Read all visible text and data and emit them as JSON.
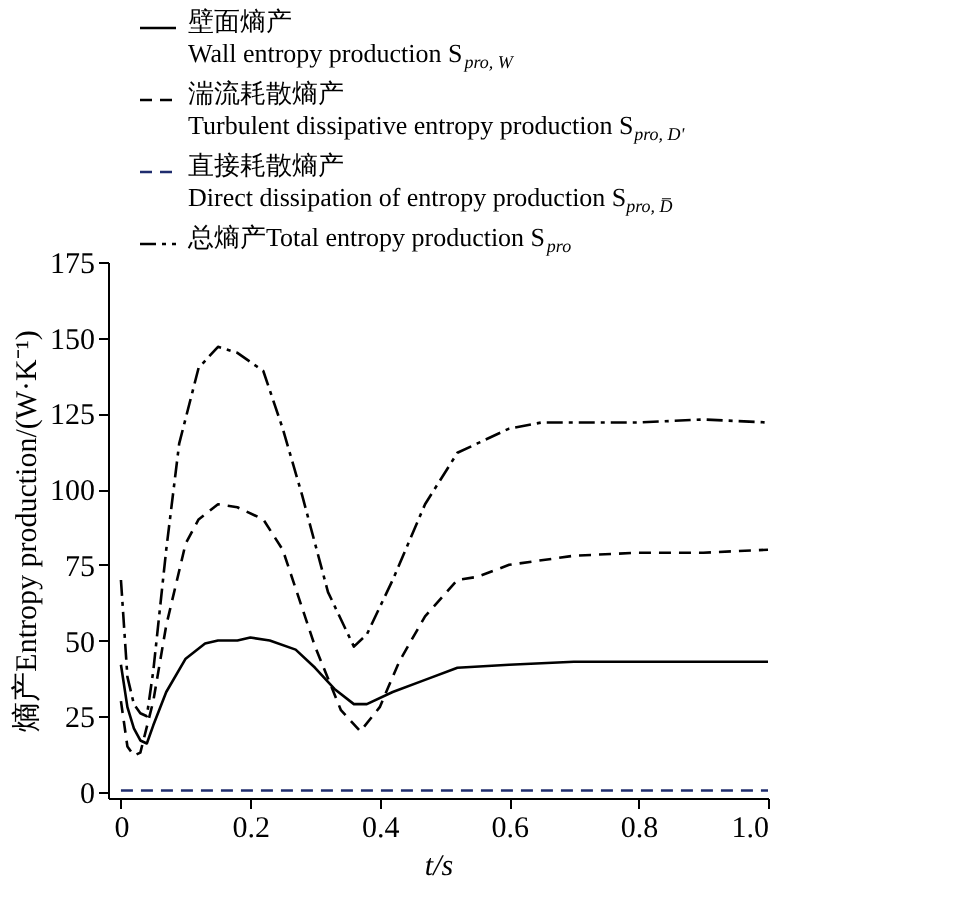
{
  "chart_data": {
    "type": "line",
    "xlabel": "t/s",
    "ylabel": "熵产Entropy production/(W·K⁻¹)",
    "legend": "top",
    "grid": false,
    "xlim": [
      -0.02,
      1.0
    ],
    "ylim": [
      -2,
      175
    ],
    "xticks": [
      0,
      0.2,
      0.4,
      0.6,
      0.8,
      {
        "value": 1.0,
        "label": "1.0"
      }
    ],
    "yticks": [
      0,
      25,
      50,
      75,
      100,
      125,
      150,
      175
    ],
    "series": [
      {
        "name": "壁面熵产\nWall entropy production S$_{pro, W}$",
        "color": "#000000",
        "line_style": "solid",
        "x": [
          0,
          0.01,
          0.02,
          0.03,
          0.04,
          0.05,
          0.07,
          0.1,
          0.13,
          0.15,
          0.18,
          0.2,
          0.23,
          0.27,
          0.3,
          0.33,
          0.36,
          0.38,
          0.42,
          0.47,
          0.52,
          0.6,
          0.7,
          0.8,
          0.9,
          1.0
        ],
        "values": [
          42,
          28,
          21,
          17,
          16,
          22,
          33,
          44,
          49,
          50,
          50,
          51,
          50,
          47,
          41,
          34,
          29,
          29,
          33,
          37,
          41,
          42,
          43,
          43,
          43,
          43
        ]
      },
      {
        "name": "湍流耗散熵产\nTurbulent dissipative entropy production S$_{pro, D'}$",
        "color": "#000000",
        "line_style": "dashed",
        "x": [
          0,
          0.01,
          0.02,
          0.03,
          0.05,
          0.07,
          0.1,
          0.12,
          0.15,
          0.18,
          0.22,
          0.25,
          0.3,
          0.34,
          0.37,
          0.4,
          0.43,
          0.47,
          0.52,
          0.55,
          0.6,
          0.7,
          0.8,
          0.9,
          1.0
        ],
        "values": [
          30,
          15,
          12,
          13,
          30,
          55,
          82,
          90,
          95,
          94,
          90,
          80,
          48,
          27,
          20,
          28,
          43,
          58,
          70,
          71,
          75,
          78,
          79,
          79,
          80
        ]
      },
      {
        "name": "直接耗散熵产\nDirect dissipation of entropy production S$_{pro, D̅}$",
        "color": "#1f2d6e",
        "line_style": "dashed",
        "x": [
          0,
          0.2,
          0.4,
          0.6,
          0.8,
          1.0
        ],
        "values": [
          0.5,
          0.5,
          0.5,
          0.5,
          0.5,
          0.5
        ]
      },
      {
        "name": "总熵产Total entropy production S$_{pro}$",
        "color": "#000000",
        "line_style": "dashdot",
        "x": [
          0,
          0.01,
          0.02,
          0.03,
          0.04,
          0.05,
          0.07,
          0.09,
          0.12,
          0.15,
          0.18,
          0.22,
          0.25,
          0.28,
          0.32,
          0.36,
          0.38,
          0.42,
          0.47,
          0.52,
          0.55,
          0.6,
          0.65,
          0.7,
          0.8,
          0.9,
          1.0
        ],
        "values": [
          70,
          38,
          29,
          26,
          25,
          40,
          80,
          115,
          140,
          147,
          145,
          139,
          120,
          98,
          66,
          48,
          52,
          70,
          95,
          112,
          115,
          120,
          122,
          122,
          122,
          123,
          122
        ]
      }
    ]
  }
}
